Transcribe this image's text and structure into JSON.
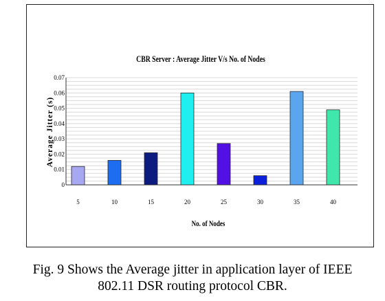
{
  "chart_data": {
    "type": "bar",
    "title": "CBR Server : Average Jitter V/s No. of Nodes",
    "xlabel": "No. of Nodes",
    "ylabel": "Average Jitter (s)",
    "categories": [
      "5",
      "10",
      "15",
      "20",
      "25",
      "30",
      "35",
      "40"
    ],
    "values": [
      0.012,
      0.016,
      0.021,
      0.06,
      0.027,
      0.006,
      0.061,
      0.049
    ],
    "ylim": [
      0,
      0.07
    ],
    "yticks": [
      "0",
      "0.01",
      "0.02",
      "0.03",
      "0.04",
      "0.05",
      "0.06",
      "0.07"
    ],
    "grid": true,
    "bar_colors": [
      "#a7a7f2",
      "#1e6cf0",
      "#0d1a80",
      "#1fefef",
      "#5210e4",
      "#0b20d8",
      "#5aa4f0",
      "#3fe8aa"
    ]
  },
  "caption": {
    "line1": "Fig. 9 Shows the Average jitter in application layer of IEEE",
    "line2": "802.11 DSR routing protocol CBR."
  }
}
